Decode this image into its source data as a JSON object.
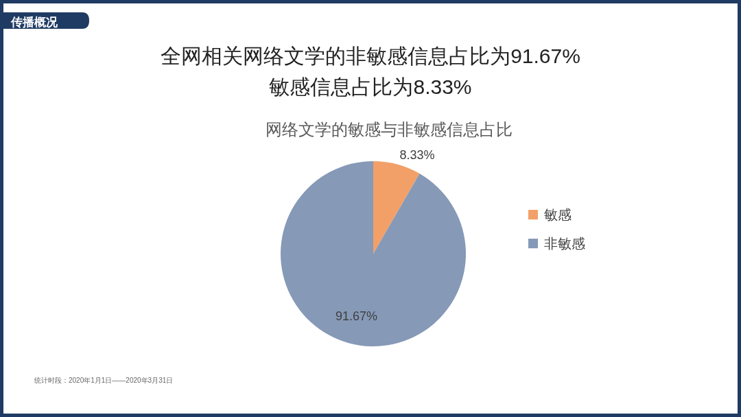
{
  "chart_data": {
    "type": "pie",
    "title": "网络文学的敏感与非敏感信息占比",
    "categories": [
      "敏感",
      "非敏感"
    ],
    "values": [
      8.33,
      91.67
    ],
    "value_labels": [
      "8.33%",
      "91.67%"
    ],
    "colors": [
      "#f2a068",
      "#8699b7"
    ],
    "legend": "right",
    "annotations": [
      "传播概况",
      "全网相关网络文学的非敏感信息占比为91.67%",
      "敏感信息占比为8.33%",
      "统计时段：2020年1月1日——2020年3月31日"
    ]
  }
}
